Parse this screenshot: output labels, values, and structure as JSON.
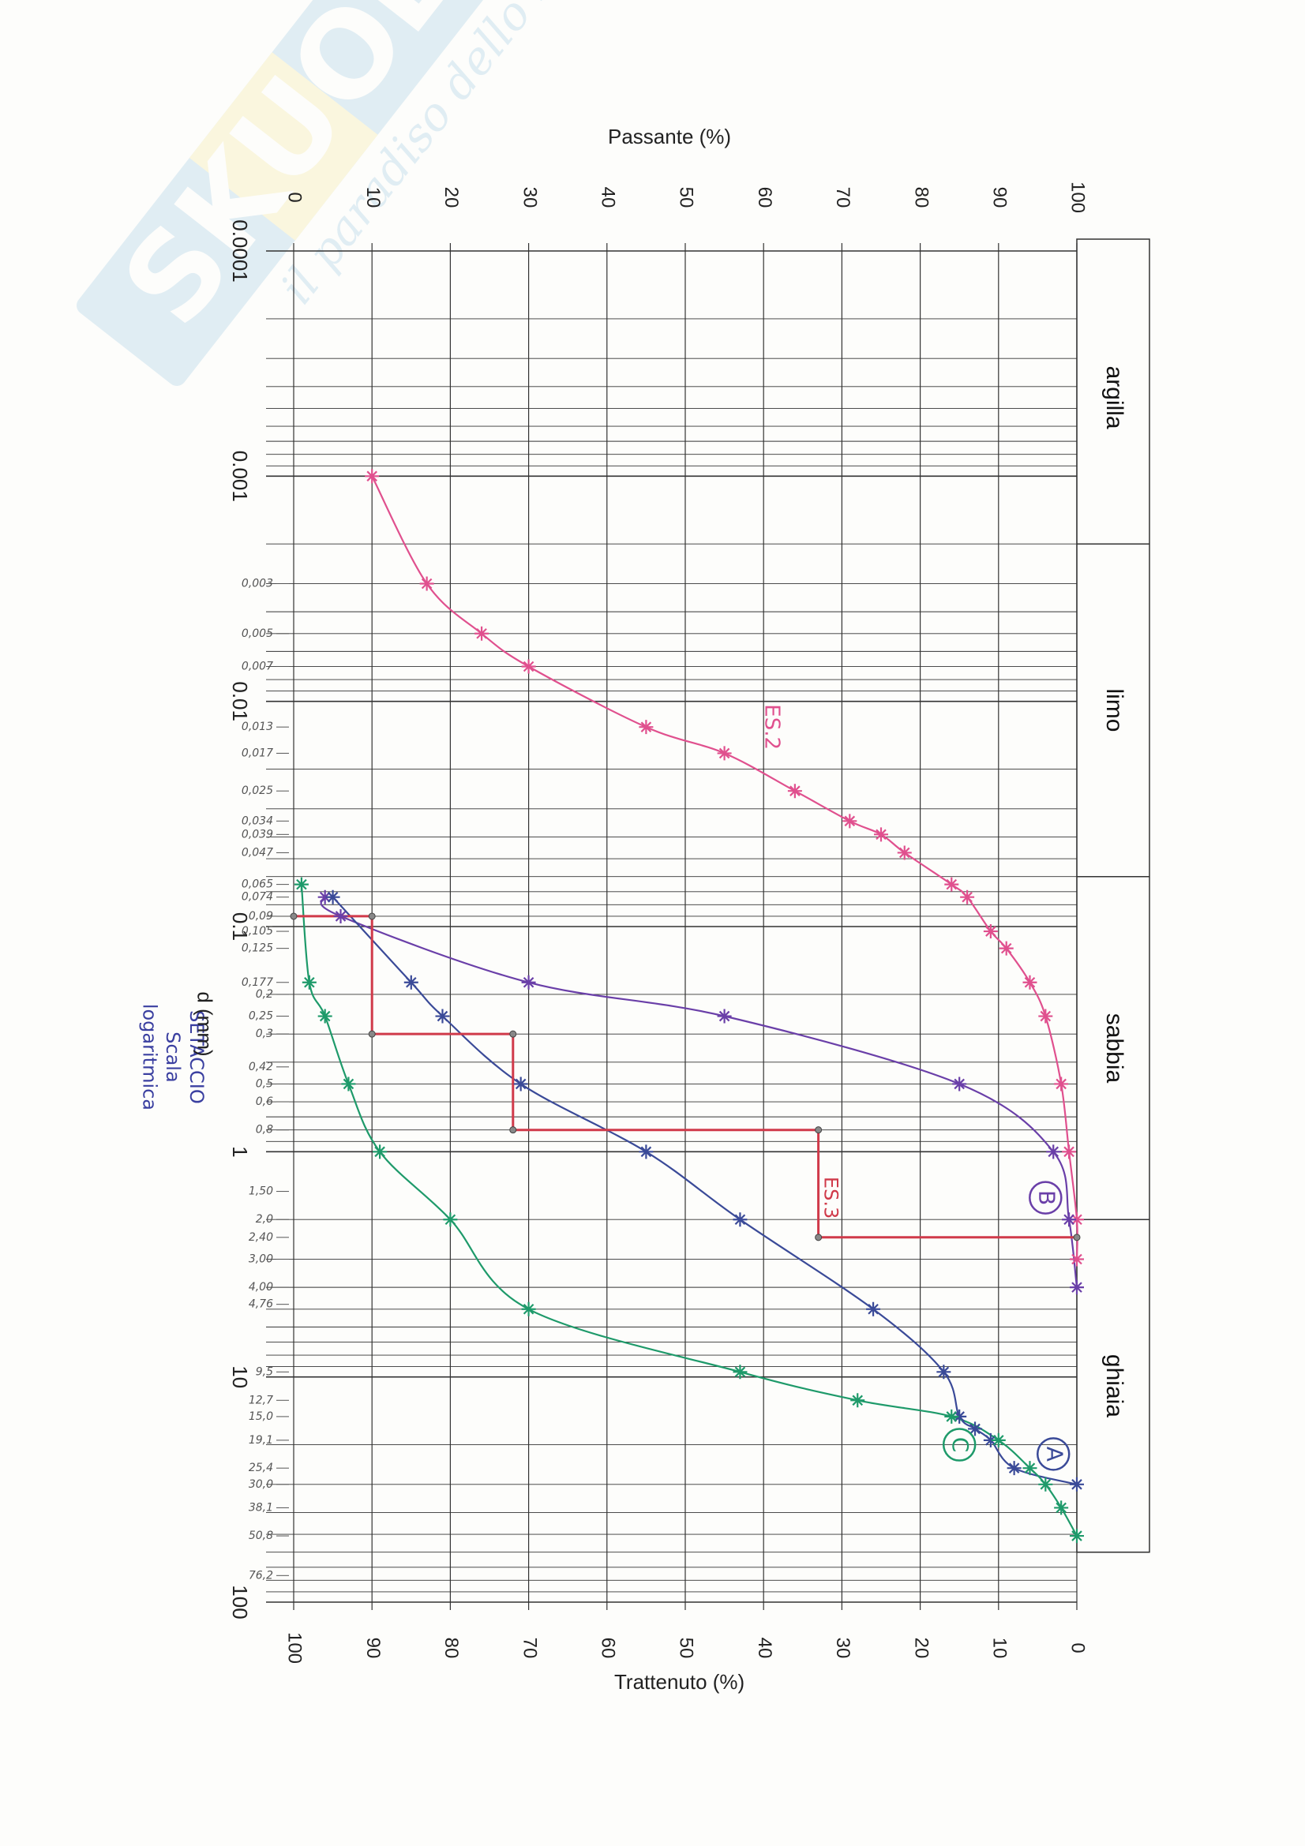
{
  "chart_data": {
    "type": "line",
    "title": "",
    "x_axis": {
      "label": "d (mm)",
      "scale": "log",
      "range": [
        0.0001,
        100
      ],
      "decade_labels": [
        "0.0001",
        "0.001",
        "0.01",
        "0.1",
        "1",
        "10",
        "100"
      ]
    },
    "y_axis_left": {
      "label": "Passante (%)",
      "range": [
        0,
        100
      ],
      "ticks": [
        "0",
        "10",
        "20",
        "30",
        "40",
        "50",
        "60",
        "70",
        "80",
        "90",
        "100"
      ]
    },
    "y_axis_right": {
      "label": "Trattenuto (%)",
      "range": [
        100,
        0
      ],
      "ticks": [
        "100",
        "90",
        "80",
        "70",
        "60",
        "50",
        "40",
        "30",
        "20",
        "10",
        "0"
      ]
    },
    "grid": true,
    "zones": [
      {
        "label": "argilla",
        "from": 0.0001,
        "to": 0.002
      },
      {
        "label": "limo",
        "from": 0.002,
        "to": 0.06
      },
      {
        "label": "sabbia",
        "from": 0.06,
        "to": 2
      },
      {
        "label": "ghiaia",
        "from": 2,
        "to": 60
      }
    ],
    "sieve_labels": [
      {
        "text": "0,003",
        "d": 0.003
      },
      {
        "text": "0,005",
        "d": 0.005
      },
      {
        "text": "0,007",
        "d": 0.007
      },
      {
        "text": "0,013",
        "d": 0.013
      },
      {
        "text": "0,017",
        "d": 0.017
      },
      {
        "text": "0,025",
        "d": 0.025
      },
      {
        "text": "0,034",
        "d": 0.034
      },
      {
        "text": "0,039",
        "d": 0.039
      },
      {
        "text": "0,047",
        "d": 0.047
      },
      {
        "text": "0,065",
        "d": 0.065
      },
      {
        "text": "0,074",
        "d": 0.074
      },
      {
        "text": "0,09",
        "d": 0.09
      },
      {
        "text": "0,105",
        "d": 0.105
      },
      {
        "text": "0,125",
        "d": 0.125
      },
      {
        "text": "0,177",
        "d": 0.177
      },
      {
        "text": "0,2",
        "d": 0.2
      },
      {
        "text": "0,25",
        "d": 0.25
      },
      {
        "text": "0,3",
        "d": 0.3
      },
      {
        "text": "0,42",
        "d": 0.42
      },
      {
        "text": "0,5",
        "d": 0.5
      },
      {
        "text": "0,6",
        "d": 0.6
      },
      {
        "text": "0,8",
        "d": 0.8
      },
      {
        "text": "1,50",
        "d": 1.5
      },
      {
        "text": "2,0",
        "d": 2.0
      },
      {
        "text": "2,40",
        "d": 2.4
      },
      {
        "text": "3,00",
        "d": 3.0
      },
      {
        "text": "4,00",
        "d": 4.0
      },
      {
        "text": "4,76",
        "d": 4.76
      },
      {
        "text": "9,5",
        "d": 9.5
      },
      {
        "text": "12,7",
        "d": 12.7
      },
      {
        "text": "15,0",
        "d": 15.0
      },
      {
        "text": "19,1",
        "d": 19.1
      },
      {
        "text": "25,4",
        "d": 25.4
      },
      {
        "text": "30,0",
        "d": 30.0
      },
      {
        "text": "38,1",
        "d": 38.1
      },
      {
        "text": "50,8",
        "d": 50.8
      },
      {
        "text": "76,2",
        "d": 76.2
      }
    ],
    "series": [
      {
        "name": "ES.2",
        "color": "#e0508e",
        "marker": "star",
        "points": [
          [
            0.001,
            10
          ],
          [
            0.003,
            17
          ],
          [
            0.005,
            24
          ],
          [
            0.007,
            30
          ],
          [
            0.013,
            45
          ],
          [
            0.017,
            55
          ],
          [
            0.025,
            64
          ],
          [
            0.034,
            71
          ],
          [
            0.039,
            75
          ],
          [
            0.047,
            78
          ],
          [
            0.065,
            84
          ],
          [
            0.074,
            86
          ],
          [
            0.105,
            89
          ],
          [
            0.125,
            91
          ],
          [
            0.177,
            94
          ],
          [
            0.25,
            96
          ],
          [
            0.5,
            98
          ],
          [
            1,
            99
          ],
          [
            2,
            100
          ],
          [
            3,
            100
          ]
        ]
      },
      {
        "name": "B",
        "color": "#6a3fa8",
        "marker": "star",
        "points": [
          [
            0.074,
            4
          ],
          [
            0.09,
            6
          ],
          [
            0.177,
            30
          ],
          [
            0.25,
            55
          ],
          [
            0.5,
            85
          ],
          [
            1,
            97
          ],
          [
            2,
            99
          ],
          [
            4,
            100
          ]
        ]
      },
      {
        "name": "A",
        "color": "#3a4a98",
        "marker": "star",
        "points": [
          [
            0.074,
            5
          ],
          [
            0.177,
            15
          ],
          [
            0.25,
            19
          ],
          [
            0.5,
            29
          ],
          [
            1,
            45
          ],
          [
            2,
            57
          ],
          [
            5,
            74
          ],
          [
            9.5,
            83
          ],
          [
            15,
            85
          ],
          [
            17,
            87
          ],
          [
            19.1,
            89
          ],
          [
            25.4,
            92
          ],
          [
            30,
            100
          ]
        ]
      },
      {
        "name": "C",
        "color": "#1e9a6a",
        "marker": "star",
        "points": [
          [
            0.065,
            1
          ],
          [
            0.177,
            2
          ],
          [
            0.25,
            4
          ],
          [
            0.5,
            7
          ],
          [
            1,
            11
          ],
          [
            2,
            20
          ],
          [
            5,
            30
          ],
          [
            9.5,
            57
          ],
          [
            12.7,
            72
          ],
          [
            15,
            84
          ],
          [
            19.1,
            90
          ],
          [
            25.4,
            94
          ],
          [
            30,
            96
          ],
          [
            38.1,
            98
          ],
          [
            50.8,
            100
          ]
        ]
      },
      {
        "name": "ES.3",
        "color": "#d03a4a",
        "marker": "step",
        "points": [
          [
            0.09,
            0
          ],
          [
            0.09,
            10
          ],
          [
            0.3,
            10
          ],
          [
            0.3,
            28
          ],
          [
            0.8,
            28
          ],
          [
            0.8,
            67
          ],
          [
            2.4,
            67
          ],
          [
            2.4,
            100
          ]
        ]
      }
    ],
    "annotations": [
      {
        "text": "ES.2",
        "series": "ES.2"
      },
      {
        "text": "ES.3",
        "series": "ES.3"
      },
      {
        "text": "A",
        "series": "A"
      },
      {
        "text": "B",
        "series": "B"
      },
      {
        "text": "C",
        "series": "C"
      },
      {
        "text": "SETACCIO",
        "series": ""
      },
      {
        "text": "Scala",
        "series": ""
      },
      {
        "text": "logaritmica",
        "series": ""
      }
    ]
  },
  "watermark": {
    "brand": "Skuola.net",
    "tagline": "il paradiso dello studente"
  }
}
